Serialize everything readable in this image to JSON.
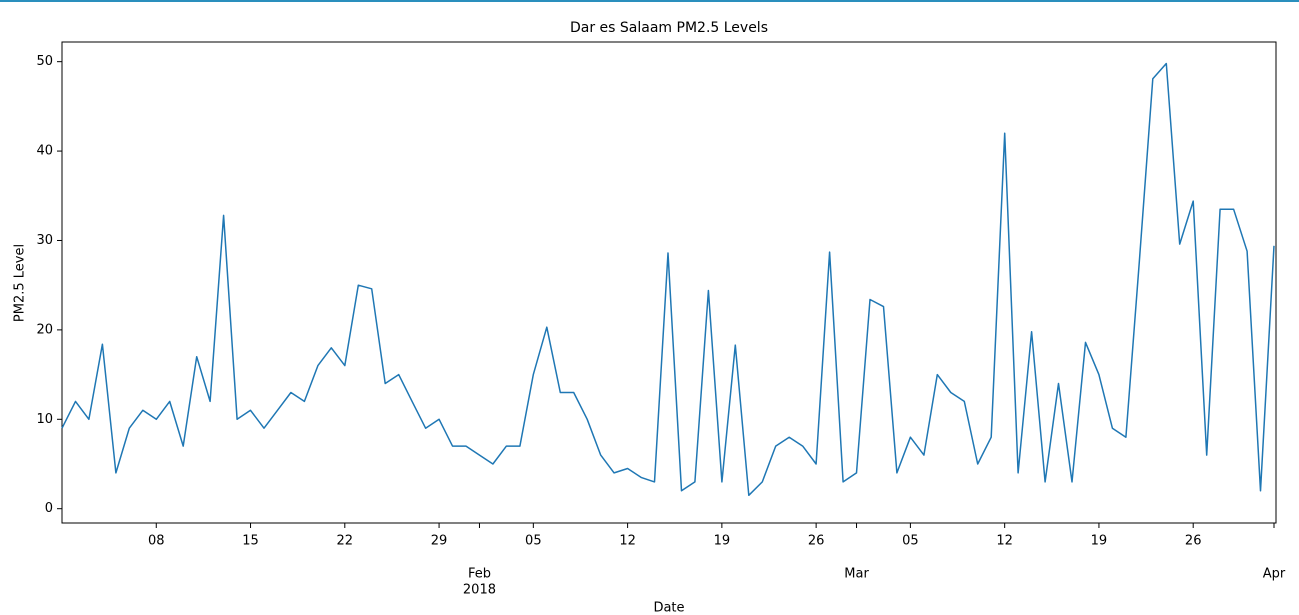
{
  "chart_data": {
    "type": "line",
    "title": "Dar es Salaam PM2.5 Levels",
    "xlabel": "Date",
    "ylabel": "PM2.5 Level",
    "x": [
      "2018-01-01",
      "2018-01-02",
      "2018-01-03",
      "2018-01-04",
      "2018-01-05",
      "2018-01-06",
      "2018-01-07",
      "2018-01-08",
      "2018-01-09",
      "2018-01-10",
      "2018-01-11",
      "2018-01-12",
      "2018-01-13",
      "2018-01-14",
      "2018-01-15",
      "2018-01-16",
      "2018-01-17",
      "2018-01-18",
      "2018-01-19",
      "2018-01-20",
      "2018-01-21",
      "2018-01-22",
      "2018-01-23",
      "2018-01-24",
      "2018-01-25",
      "2018-01-26",
      "2018-01-27",
      "2018-01-28",
      "2018-01-29",
      "2018-01-30",
      "2018-01-31",
      "2018-02-01",
      "2018-02-02",
      "2018-02-03",
      "2018-02-04",
      "2018-02-05",
      "2018-02-06",
      "2018-02-07",
      "2018-02-08",
      "2018-02-09",
      "2018-02-10",
      "2018-02-11",
      "2018-02-12",
      "2018-02-13",
      "2018-02-14",
      "2018-02-15",
      "2018-02-16",
      "2018-02-17",
      "2018-02-18",
      "2018-02-19",
      "2018-02-20",
      "2018-02-21",
      "2018-02-22",
      "2018-02-23",
      "2018-02-24",
      "2018-02-25",
      "2018-02-26",
      "2018-02-27",
      "2018-02-28",
      "2018-03-01",
      "2018-03-02",
      "2018-03-03",
      "2018-03-04",
      "2018-03-05",
      "2018-03-06",
      "2018-03-07",
      "2018-03-08",
      "2018-03-09",
      "2018-03-10",
      "2018-03-11",
      "2018-03-12",
      "2018-03-13",
      "2018-03-14",
      "2018-03-15",
      "2018-03-16",
      "2018-03-17",
      "2018-03-18",
      "2018-03-19",
      "2018-03-20",
      "2018-03-21",
      "2018-03-22",
      "2018-03-23",
      "2018-03-24",
      "2018-03-25",
      "2018-03-26",
      "2018-03-27",
      "2018-03-28",
      "2018-03-29",
      "2018-03-30",
      "2018-03-31",
      "2018-04-01"
    ],
    "series": [
      {
        "name": "PM2.5",
        "color": "#1f77b4",
        "values": [
          9,
          12,
          10,
          18.4,
          4,
          9,
          11,
          10,
          12,
          7,
          17,
          12,
          32.8,
          10,
          11,
          9,
          11,
          13,
          12,
          16,
          18,
          16,
          25,
          24.6,
          14,
          15,
          12,
          9,
          10,
          7,
          7,
          6,
          5,
          7,
          7,
          15,
          20.3,
          13,
          13,
          10,
          6,
          4,
          4.5,
          3.5,
          3,
          28.6,
          2,
          3,
          24.4,
          3,
          18.3,
          1.5,
          3,
          7,
          8,
          7,
          5,
          28.7,
          3,
          4,
          23.4,
          22.6,
          4,
          8,
          6,
          15,
          13,
          12,
          5,
          8,
          42,
          4,
          19.8,
          3,
          14,
          3,
          18.6,
          15,
          9,
          8,
          27.6,
          48.1,
          49.8,
          29.6,
          34.4,
          6,
          33.5,
          33.5,
          28.8,
          2,
          29.4
        ]
      }
    ],
    "xlim": [
      "2018-01-01",
      "2018-04-01"
    ],
    "xticks": [
      {
        "value": "2018-01-08",
        "label": "08"
      },
      {
        "value": "2018-01-15",
        "label": "15"
      },
      {
        "value": "2018-01-22",
        "label": "22"
      },
      {
        "value": "2018-01-29",
        "label": "29"
      },
      {
        "value": "2018-02-01",
        "label": "Feb"
      },
      {
        "value": "2018-02-05",
        "label": "05"
      },
      {
        "value": "2018-02-12",
        "label": "12"
      },
      {
        "value": "2018-02-19",
        "label": "19"
      },
      {
        "value": "2018-02-26",
        "label": "26"
      },
      {
        "value": "2018-03-01",
        "label": "Mar"
      },
      {
        "value": "2018-03-05",
        "label": "05"
      },
      {
        "value": "2018-03-12",
        "label": "12"
      },
      {
        "value": "2018-03-19",
        "label": "19"
      },
      {
        "value": "2018-03-26",
        "label": "26"
      },
      {
        "value": "2018-04-01",
        "label": "Apr"
      }
    ],
    "x_year_label": "2018",
    "ylim": [
      -1.6,
      52.2
    ],
    "yticks": [
      0,
      10,
      20,
      30,
      40,
      50
    ],
    "grid": false
  }
}
